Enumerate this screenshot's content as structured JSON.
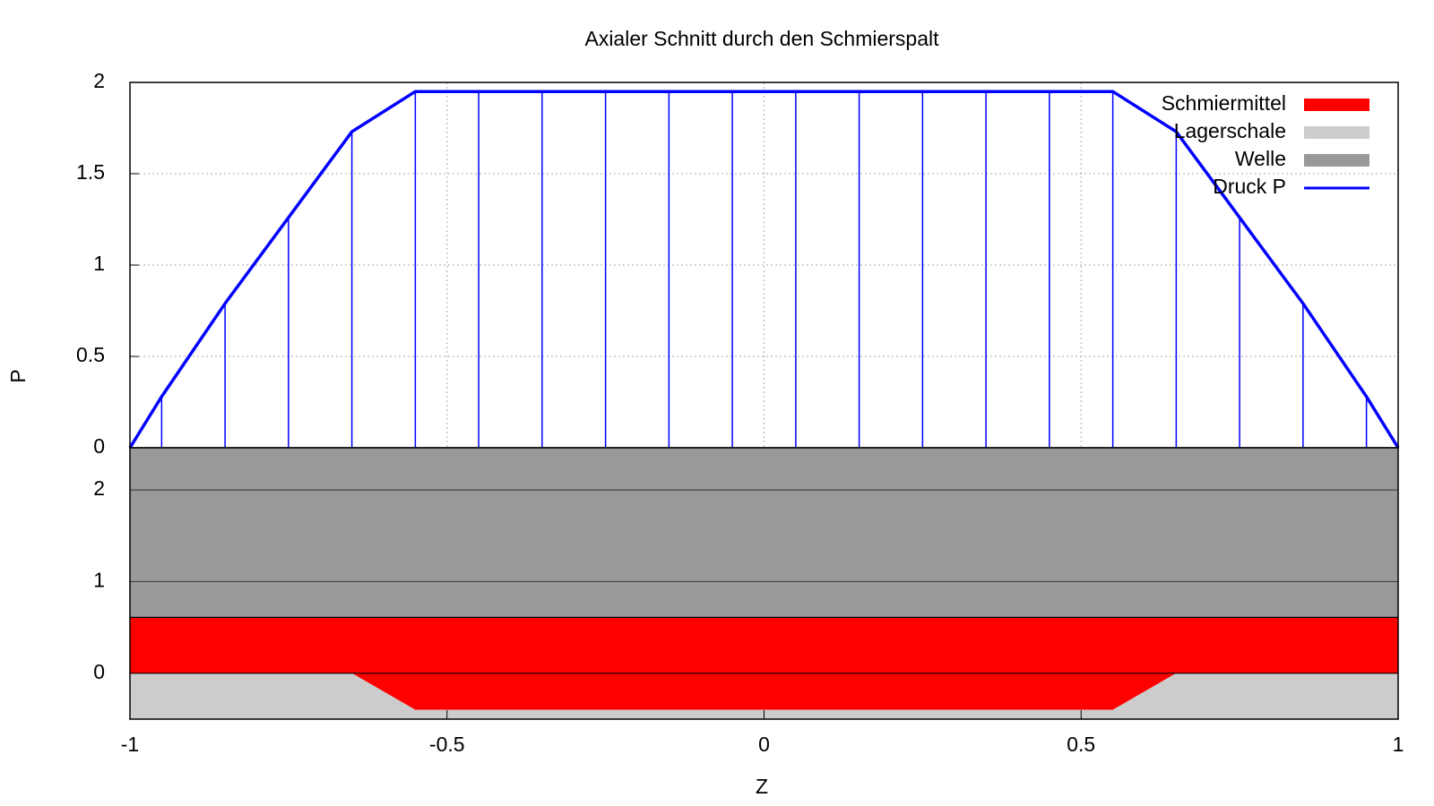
{
  "chart_data": [
    {
      "type": "line",
      "title": "Axialer Schnitt durch den Schmierspalt",
      "ylabel": "P",
      "xlim": [
        -1,
        1
      ],
      "xticks": [
        -1,
        -0.5,
        0,
        0.5,
        1
      ],
      "ylim": [
        0,
        2
      ],
      "yticks": [
        0,
        0.5,
        1,
        1.5,
        2
      ],
      "grid": true,
      "impulses": true,
      "legend": "top-right",
      "x": [
        -1,
        -0.95,
        -0.85,
        -0.75,
        -0.65,
        -0.55,
        -0.45,
        -0.35,
        -0.25,
        -0.15,
        -0.05,
        0.05,
        0.15,
        0.25,
        0.35,
        0.45,
        0.55,
        0.65,
        0.75,
        0.85,
        0.95,
        1
      ],
      "series": [
        {
          "name": "Druck P",
          "color": "#0000ff",
          "values": [
            0,
            0.28,
            0.79,
            1.26,
            1.73,
            1.95,
            1.95,
            1.95,
            1.95,
            1.95,
            1.95,
            1.95,
            1.95,
            1.95,
            1.95,
            1.95,
            1.95,
            1.73,
            1.26,
            0.79,
            0.28,
            0
          ]
        }
      ]
    },
    {
      "type": "area",
      "xlabel": "Z",
      "xlim": [
        -1,
        1
      ],
      "xticks": [
        -1,
        -0.5,
        0,
        0.5,
        1
      ],
      "ylim": [
        -0.5,
        2.46
      ],
      "yticks": [
        0,
        1,
        2
      ],
      "grid": true,
      "x": [
        -1,
        -0.65,
        -0.55,
        0.55,
        0.65,
        1
      ],
      "series": [
        {
          "name": "Schmiermittel",
          "color": "#ff0000",
          "values": [
            0.61,
            0.61,
            0.61,
            0.61,
            0.61,
            0.61
          ]
        },
        {
          "name": "Lagerschale",
          "color": "#cccccc",
          "values": [
            0,
            0,
            -0.4,
            -0.4,
            0,
            0
          ]
        },
        {
          "name": "Welle",
          "color": "#999999",
          "values": [
            2.46,
            2.46,
            2.46,
            2.46,
            2.46,
            2.46
          ]
        }
      ]
    }
  ]
}
